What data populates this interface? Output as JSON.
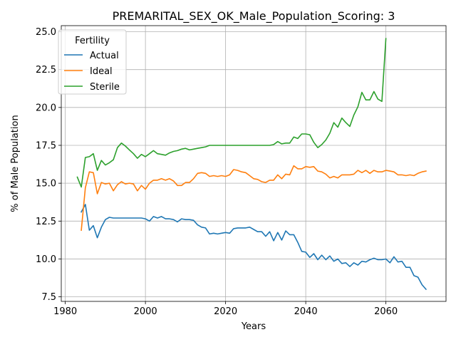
{
  "chart_data": {
    "type": "line",
    "title": "PREMARITAL_SEX_OK_Male_Population_Scoring: 3",
    "xlabel": "Years",
    "ylabel": "% of Male Population",
    "xlim": [
      1979,
      2075
    ],
    "ylim": [
      7.2,
      25.4
    ],
    "xticks": [
      1980,
      2000,
      2020,
      2040,
      2060
    ],
    "xtick_labels": [
      "1980",
      "2000",
      "2020",
      "2040",
      "2060"
    ],
    "yticks": [
      7.5,
      10.0,
      12.5,
      15.0,
      17.5,
      20.0,
      22.5,
      25.0
    ],
    "ytick_labels": [
      "7.5",
      "10.0",
      "12.5",
      "15.0",
      "17.5",
      "20.0",
      "22.5",
      "25.0"
    ],
    "grid": true,
    "legend_title": "Fertility",
    "legend_position": "upper-left",
    "series": [
      {
        "name": "Actual",
        "color": "#1f77b4",
        "x": [
          1984,
          1985,
          1986,
          1987,
          1988,
          1989,
          1990,
          1991,
          1992,
          1993,
          1994,
          1995,
          1996,
          1997,
          1998,
          1999,
          2000,
          2001,
          2002,
          2003,
          2004,
          2005,
          2006,
          2007,
          2008,
          2009,
          2010,
          2011,
          2012,
          2013,
          2014,
          2015,
          2016,
          2017,
          2018,
          2019,
          2020,
          2021,
          2022,
          2023,
          2024,
          2025,
          2026,
          2027,
          2028,
          2029,
          2030,
          2031,
          2032,
          2033,
          2034,
          2035,
          2036,
          2037,
          2038,
          2039,
          2040,
          2041,
          2042,
          2043,
          2044,
          2045,
          2046,
          2047,
          2048,
          2049,
          2050,
          2051,
          2052,
          2053,
          2054,
          2055,
          2056,
          2057,
          2058,
          2059,
          2060,
          2061,
          2062,
          2063,
          2064,
          2065,
          2066,
          2067,
          2068,
          2069,
          2070
        ],
        "y": [
          13.1,
          13.6,
          11.9,
          12.2,
          11.4,
          12.1,
          12.6,
          12.75,
          12.7,
          12.7,
          12.7,
          12.7,
          12.7,
          12.7,
          12.7,
          12.7,
          12.65,
          12.5,
          12.8,
          12.7,
          12.8,
          12.65,
          12.65,
          12.6,
          12.45,
          12.65,
          12.6,
          12.6,
          12.55,
          12.25,
          12.1,
          12.05,
          11.65,
          11.7,
          11.65,
          11.7,
          11.75,
          11.7,
          12.0,
          12.05,
          12.05,
          12.05,
          12.1,
          11.95,
          11.8,
          11.8,
          11.5,
          11.8,
          11.2,
          11.75,
          11.25,
          11.85,
          11.6,
          11.6,
          11.1,
          10.5,
          10.45,
          10.1,
          10.35,
          9.95,
          10.25,
          9.95,
          10.2,
          9.85,
          10.0,
          9.7,
          9.75,
          9.5,
          9.75,
          9.6,
          9.85,
          9.8,
          9.95,
          10.05,
          9.95,
          9.95,
          10.0,
          9.75,
          10.15,
          9.8,
          9.85,
          9.45,
          9.45,
          8.9,
          8.8,
          8.3,
          8.0
        ]
      },
      {
        "name": "Ideal",
        "color": "#ff7f0e",
        "x": [
          1984,
          1985,
          1986,
          1987,
          1988,
          1989,
          1990,
          1991,
          1992,
          1993,
          1994,
          1995,
          1996,
          1997,
          1998,
          1999,
          2000,
          2001,
          2002,
          2003,
          2004,
          2005,
          2006,
          2007,
          2008,
          2009,
          2010,
          2011,
          2012,
          2013,
          2014,
          2015,
          2016,
          2017,
          2018,
          2019,
          2020,
          2021,
          2022,
          2023,
          2024,
          2025,
          2026,
          2027,
          2028,
          2029,
          2030,
          2031,
          2032,
          2033,
          2034,
          2035,
          2036,
          2037,
          2038,
          2039,
          2040,
          2041,
          2042,
          2043,
          2044,
          2045,
          2046,
          2047,
          2048,
          2049,
          2050,
          2051,
          2052,
          2053,
          2054,
          2055,
          2056,
          2057,
          2058,
          2059,
          2060,
          2061,
          2062,
          2063,
          2064,
          2065,
          2066,
          2067,
          2068,
          2069,
          2070
        ],
        "y": [
          11.9,
          14.7,
          15.75,
          15.7,
          14.3,
          15.05,
          14.95,
          15.0,
          14.5,
          14.9,
          15.1,
          14.95,
          15.0,
          14.95,
          14.5,
          14.85,
          14.6,
          15.0,
          15.2,
          15.2,
          15.3,
          15.2,
          15.3,
          15.15,
          14.85,
          14.85,
          15.05,
          15.05,
          15.3,
          15.65,
          15.7,
          15.65,
          15.45,
          15.5,
          15.45,
          15.5,
          15.45,
          15.55,
          15.9,
          15.85,
          15.75,
          15.7,
          15.5,
          15.3,
          15.25,
          15.1,
          15.05,
          15.2,
          15.2,
          15.55,
          15.3,
          15.6,
          15.55,
          16.15,
          15.95,
          15.95,
          16.1,
          16.05,
          16.1,
          15.8,
          15.75,
          15.6,
          15.35,
          15.45,
          15.35,
          15.55,
          15.55,
          15.55,
          15.6,
          15.85,
          15.7,
          15.85,
          15.65,
          15.85,
          15.75,
          15.75,
          15.85,
          15.8,
          15.75,
          15.55,
          15.55,
          15.5,
          15.55,
          15.5,
          15.65,
          15.75,
          15.8
        ]
      },
      {
        "name": "Sterile",
        "color": "#2ca02c",
        "x": [
          1983,
          1984,
          1985,
          1986,
          1987,
          1988,
          1989,
          1990,
          1991,
          1992,
          1993,
          1994,
          1995,
          1996,
          1997,
          1998,
          1999,
          2000,
          2001,
          2002,
          2003,
          2004,
          2005,
          2006,
          2007,
          2008,
          2009,
          2010,
          2011,
          2012,
          2013,
          2014,
          2015,
          2016,
          2017,
          2018,
          2019,
          2020,
          2021,
          2022,
          2023,
          2024,
          2025,
          2026,
          2027,
          2028,
          2029,
          2030,
          2031,
          2032,
          2033,
          2034,
          2035,
          2036,
          2037,
          2038,
          2039,
          2040,
          2041,
          2042,
          2043,
          2044,
          2045,
          2046,
          2047,
          2048,
          2049,
          2050,
          2051,
          2052,
          2053,
          2054,
          2055,
          2056,
          2057,
          2058,
          2059,
          2060
        ],
        "y": [
          15.4,
          14.75,
          16.7,
          16.75,
          16.95,
          15.85,
          16.5,
          16.2,
          16.35,
          16.55,
          17.35,
          17.65,
          17.45,
          17.2,
          16.95,
          16.65,
          16.9,
          16.75,
          16.95,
          17.15,
          16.95,
          16.9,
          16.85,
          17.0,
          17.1,
          17.15,
          17.25,
          17.3,
          17.2,
          17.25,
          17.3,
          17.35,
          17.4,
          17.5,
          17.5,
          17.5,
          17.5,
          17.5,
          17.5,
          17.5,
          17.5,
          17.5,
          17.5,
          17.5,
          17.5,
          17.5,
          17.5,
          17.5,
          17.5,
          17.55,
          17.75,
          17.6,
          17.65,
          17.65,
          18.05,
          17.95,
          18.25,
          18.25,
          18.2,
          17.7,
          17.35,
          17.55,
          17.85,
          18.3,
          19.0,
          18.7,
          19.3,
          19.0,
          18.75,
          19.5,
          20.05,
          21.0,
          20.5,
          20.5,
          21.05,
          20.55,
          20.4,
          24.55
        ]
      }
    ]
  }
}
